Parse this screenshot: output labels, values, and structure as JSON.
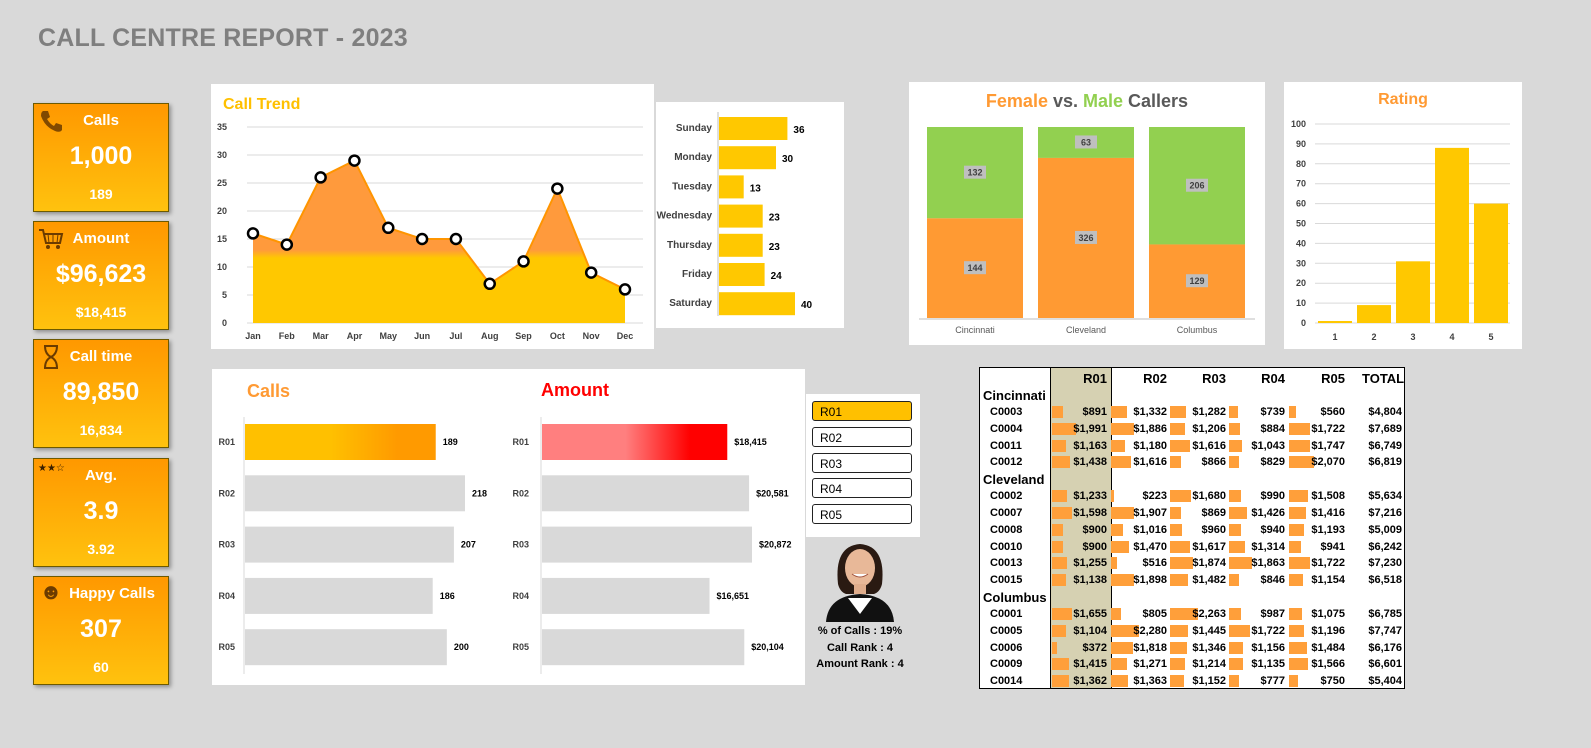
{
  "page_title": "CALL CENTRE REPORT - 2023",
  "kpis": [
    {
      "label": "Calls",
      "value": "1,000",
      "sub": "189",
      "icon": "phone-icon"
    },
    {
      "label": "Amount",
      "value": "$96,623",
      "sub": "$18,415",
      "icon": "cart-icon"
    },
    {
      "label": "Call time",
      "value": "89,850",
      "sub": "16,834",
      "icon": "hourglass-icon"
    },
    {
      "label": "Avg.",
      "value": "3.9",
      "sub": "3.92",
      "icon": "stars-icon",
      "icon_text": "★★☆"
    },
    {
      "label": "Happy Calls",
      "value": "307",
      "sub": "60",
      "icon": "smiley-icon",
      "icon_text": "☻"
    }
  ],
  "colors": {
    "accent": "#ffc000",
    "orange": "#ff9a33",
    "green": "#92d050",
    "red": "#ff0000",
    "grey_bar": "#d9d9d9"
  },
  "call_trend": {
    "title": "Call Trend",
    "type": "area",
    "months": [
      "Jan",
      "Feb",
      "Mar",
      "Apr",
      "May",
      "Jun",
      "Jul",
      "Aug",
      "Sep",
      "Oct",
      "Nov",
      "Dec"
    ],
    "values": [
      16,
      14,
      26,
      29,
      17,
      15,
      15,
      7,
      11,
      24,
      9,
      6
    ],
    "y_ticks": [
      "0",
      "5",
      "10",
      "15",
      "20",
      "25",
      "30",
      "35"
    ],
    "ylim": [
      0,
      35
    ]
  },
  "weekday": {
    "type": "bar",
    "days": [
      "Sunday",
      "Monday",
      "Tuesday",
      "Wednesday",
      "Thursday",
      "Friday",
      "Saturday"
    ],
    "values": [
      36,
      30,
      13,
      23,
      23,
      24,
      40
    ],
    "labels": [
      "36",
      "30",
      "13",
      "23",
      "23",
      "24",
      "40"
    ]
  },
  "gender": {
    "title_female": "Female",
    "title_vs": " vs. ",
    "title_male": "Male",
    "title_tail": " Callers",
    "type": "stacked-bar",
    "cities": [
      "Cincinnati",
      "Cleveland",
      "Columbus"
    ],
    "female": [
      144,
      326,
      129
    ],
    "male": [
      132,
      63,
      206
    ],
    "female_labels": [
      "144",
      "326",
      "129"
    ],
    "male_labels": [
      "132",
      "63",
      "206"
    ]
  },
  "rating": {
    "title": "Rating",
    "type": "bar",
    "categories": [
      "1",
      "2",
      "3",
      "4",
      "5"
    ],
    "values": [
      1,
      9,
      31,
      88,
      60
    ],
    "y_ticks": [
      "0",
      "10",
      "20",
      "30",
      "40",
      "50",
      "60",
      "70",
      "80",
      "90",
      "100"
    ],
    "ylim": [
      0,
      100
    ]
  },
  "calls_panel": {
    "title": "Calls",
    "reps": [
      "R01",
      "R02",
      "R03",
      "R04",
      "R05"
    ],
    "values": [
      189,
      218,
      207,
      186,
      200
    ],
    "labels": [
      "189",
      "218",
      "207",
      "186",
      "200"
    ]
  },
  "amount_panel": {
    "title": "Amount",
    "reps": [
      "R01",
      "R02",
      "R03",
      "R04",
      "R05"
    ],
    "values": [
      18415,
      20581,
      20872,
      16651,
      20104
    ],
    "labels": [
      "$18,415",
      "$20,581",
      "$20,872",
      "$16,651",
      "$20,104"
    ]
  },
  "slicer": {
    "items": [
      "R01",
      "R02",
      "R03",
      "R04",
      "R05"
    ],
    "selected": "R01"
  },
  "rep_info": {
    "pct_calls": "% of Calls : 19%",
    "call_rank": "Call Rank : 4",
    "amount_rank": "Amount Rank : 4"
  },
  "table": {
    "headers": [
      "R01",
      "R02",
      "R03",
      "R04",
      "R05",
      "TOTAL"
    ],
    "groups": [
      {
        "city": "Cincinnati",
        "rows": [
          {
            "code": "C0003",
            "vals": [
              891,
              1332,
              1282,
              739,
              560
            ],
            "labels": [
              "$891",
              "$1,332",
              "$1,282",
              "$739",
              "$560"
            ],
            "total": "$4,804"
          },
          {
            "code": "C0004",
            "vals": [
              1991,
              1886,
              1206,
              884,
              1722
            ],
            "labels": [
              "$1,991",
              "$1,886",
              "$1,206",
              "$884",
              "$1,722"
            ],
            "total": "$7,689"
          },
          {
            "code": "C0011",
            "vals": [
              1163,
              1180,
              1616,
              1043,
              1747
            ],
            "labels": [
              "$1,163",
              "$1,180",
              "$1,616",
              "$1,043",
              "$1,747"
            ],
            "total": "$6,749"
          },
          {
            "code": "C0012",
            "vals": [
              1438,
              1616,
              866,
              829,
              2070
            ],
            "labels": [
              "$1,438",
              "$1,616",
              "$866",
              "$829",
              "$2,070"
            ],
            "total": "$6,819"
          }
        ]
      },
      {
        "city": "Cleveland",
        "rows": [
          {
            "code": "C0002",
            "vals": [
              1233,
              223,
              1680,
              990,
              1508
            ],
            "labels": [
              "$1,233",
              "$223",
              "$1,680",
              "$990",
              "$1,508"
            ],
            "total": "$5,634"
          },
          {
            "code": "C0007",
            "vals": [
              1598,
              1907,
              869,
              1426,
              1416
            ],
            "labels": [
              "$1,598",
              "$1,907",
              "$869",
              "$1,426",
              "$1,416"
            ],
            "total": "$7,216"
          },
          {
            "code": "C0008",
            "vals": [
              900,
              1016,
              960,
              940,
              1193
            ],
            "labels": [
              "$900",
              "$1,016",
              "$960",
              "$940",
              "$1,193"
            ],
            "total": "$5,009"
          },
          {
            "code": "C0010",
            "vals": [
              900,
              1470,
              1617,
              1314,
              941
            ],
            "labels": [
              "$900",
              "$1,470",
              "$1,617",
              "$1,314",
              "$941"
            ],
            "total": "$6,242"
          },
          {
            "code": "C0013",
            "vals": [
              1255,
              516,
              1874,
              1863,
              1722
            ],
            "labels": [
              "$1,255",
              "$516",
              "$1,874",
              "$1,863",
              "$1,722"
            ],
            "total": "$7,230"
          },
          {
            "code": "C0015",
            "vals": [
              1138,
              1898,
              1482,
              846,
              1154
            ],
            "labels": [
              "$1,138",
              "$1,898",
              "$1,482",
              "$846",
              "$1,154"
            ],
            "total": "$6,518"
          }
        ]
      },
      {
        "city": "Columbus",
        "rows": [
          {
            "code": "C0001",
            "vals": [
              1655,
              805,
              2263,
              987,
              1075
            ],
            "labels": [
              "$1,655",
              "$805",
              "$2,263",
              "$987",
              "$1,075"
            ],
            "total": "$6,785"
          },
          {
            "code": "C0005",
            "vals": [
              1104,
              2280,
              1445,
              1722,
              1196
            ],
            "labels": [
              "$1,104",
              "$2,280",
              "$1,445",
              "$1,722",
              "$1,196"
            ],
            "total": "$7,747"
          },
          {
            "code": "C0006",
            "vals": [
              372,
              1818,
              1346,
              1156,
              1484
            ],
            "labels": [
              "$372",
              "$1,818",
              "$1,346",
              "$1,156",
              "$1,484"
            ],
            "total": "$6,176"
          },
          {
            "code": "C0009",
            "vals": [
              1415,
              1271,
              1214,
              1135,
              1566
            ],
            "labels": [
              "$1,415",
              "$1,271",
              "$1,214",
              "$1,135",
              "$1,566"
            ],
            "total": "$6,601"
          },
          {
            "code": "C0014",
            "vals": [
              1362,
              1363,
              1152,
              777,
              750
            ],
            "labels": [
              "$1,362",
              "$1,363",
              "$1,152",
              "$777",
              "$750"
            ],
            "total": "$5,404"
          }
        ]
      }
    ]
  }
}
